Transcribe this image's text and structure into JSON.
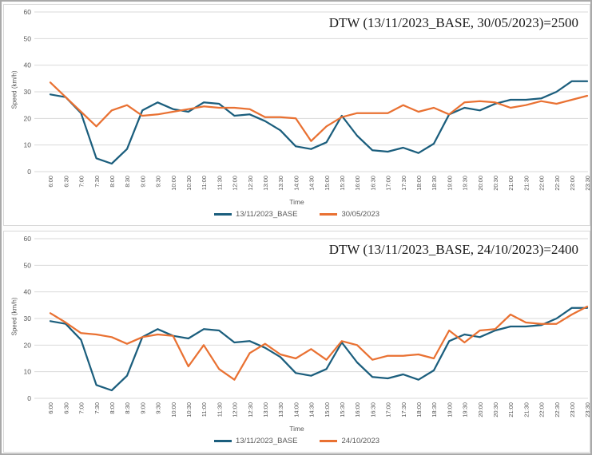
{
  "colors": {
    "base_series": "#1b5e7d",
    "compare_series": "#e97132",
    "grid": "#dadada",
    "axis_text": "#595959",
    "panel_border": "#d9d9d9"
  },
  "chart_data": [
    {
      "type": "line",
      "title": "DTW (13/11/2023_BASE, 30/05/2023)=2500",
      "xlabel": "Time",
      "ylabel": "Speed (km/h)",
      "ylim": [
        0,
        60
      ],
      "yticks": [
        0,
        10,
        20,
        30,
        40,
        50,
        60
      ],
      "grid": true,
      "legend_position": "bottom",
      "categories": [
        "6:00",
        "6:30",
        "7:00",
        "7:30",
        "8:00",
        "8:30",
        "9:00",
        "9:30",
        "10:00",
        "10:30",
        "11:00",
        "11:30",
        "12:00",
        "12:30",
        "13:00",
        "13:30",
        "14:00",
        "14:30",
        "15:00",
        "15:30",
        "16:00",
        "16:30",
        "17:00",
        "17:30",
        "18:00",
        "18:30",
        "19:00",
        "19:30",
        "20:00",
        "20:30",
        "21:00",
        "21:30",
        "22:00",
        "22:30",
        "23:00",
        "23:30"
      ],
      "series": [
        {
          "name": "13/11/2023_BASE",
          "color": "#1b5e7d",
          "values": [
            29,
            28,
            22,
            5,
            3,
            8.5,
            23,
            26,
            23.5,
            22.5,
            26,
            25.5,
            21,
            21.5,
            19,
            15.5,
            9.5,
            8.5,
            11,
            21,
            13.5,
            8,
            7.5,
            9,
            7,
            10.5,
            21.5,
            24,
            23,
            25.5,
            27,
            27,
            27.5,
            30,
            34,
            34
          ]
        },
        {
          "name": "30/05/2023",
          "color": "#e97132",
          "values": [
            33.5,
            28,
            22.5,
            17,
            23,
            25,
            21,
            21.5,
            22.5,
            23.5,
            24.5,
            24,
            24,
            23.5,
            20.5,
            20.5,
            20,
            11.5,
            17,
            20.5,
            22,
            22,
            22,
            25,
            22.5,
            24,
            21.5,
            26,
            26.5,
            26,
            24,
            25,
            26.5,
            25.5,
            27,
            28.5
          ]
        }
      ]
    },
    {
      "type": "line",
      "title": "DTW (13/11/2023_BASE, 24/10/2023)=2400",
      "xlabel": "Time",
      "ylabel": "Speed (km/h)",
      "ylim": [
        0,
        60
      ],
      "yticks": [
        0,
        10,
        20,
        30,
        40,
        50,
        60
      ],
      "grid": true,
      "legend_position": "bottom",
      "categories": [
        "6:00",
        "6:30",
        "7:00",
        "7:30",
        "8:00",
        "8:30",
        "9:00",
        "9:30",
        "10:00",
        "10:30",
        "11:00",
        "11:30",
        "12:00",
        "12:30",
        "13:00",
        "13:30",
        "14:00",
        "14:30",
        "15:00",
        "15:30",
        "16:00",
        "16:30",
        "17:00",
        "17:30",
        "18:00",
        "18:30",
        "19:00",
        "19:30",
        "20:00",
        "20:30",
        "21:00",
        "21:30",
        "22:00",
        "22:30",
        "23:00",
        "23:30"
      ],
      "series": [
        {
          "name": "13/11/2023_BASE",
          "color": "#1b5e7d",
          "values": [
            29,
            28,
            22,
            5,
            3,
            8.5,
            23,
            26,
            23.5,
            22.5,
            26,
            25.5,
            21,
            21.5,
            19,
            15.5,
            9.5,
            8.5,
            11,
            21,
            13.5,
            8,
            7.5,
            9,
            7,
            10.5,
            21.5,
            24,
            23,
            25.5,
            27,
            27,
            27.5,
            30,
            34,
            34
          ]
        },
        {
          "name": "24/10/2023",
          "color": "#e97132",
          "values": [
            32,
            28.5,
            24.5,
            24,
            23,
            20.5,
            23,
            24,
            23.5,
            12,
            20,
            11,
            7,
            17,
            20.5,
            16.5,
            15,
            18.5,
            14.5,
            21.5,
            20,
            14.5,
            16,
            16,
            16.5,
            15,
            25.5,
            21,
            25.5,
            26,
            31.5,
            28.5,
            28,
            28,
            31.5,
            34.5
          ]
        }
      ]
    }
  ]
}
